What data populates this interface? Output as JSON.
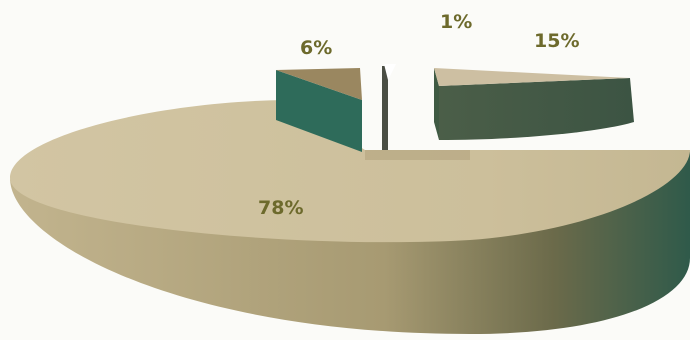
{
  "chart_data": {
    "type": "pie",
    "style": "3d-exploded",
    "slices": [
      {
        "label": "78%",
        "value": 78,
        "color": "#c9bc98"
      },
      {
        "label": "6%",
        "value": 6,
        "color": "#9a8760"
      },
      {
        "label": "1%",
        "value": 1,
        "color": "#ffffff"
      },
      {
        "label": "15%",
        "value": 15,
        "color": "#cdbfa2"
      }
    ],
    "side_colors": {
      "light": "#b9ab88",
      "dark": "#3f5a43",
      "teal": "#2e6b5a"
    },
    "label_color": "#6d6a2c"
  }
}
